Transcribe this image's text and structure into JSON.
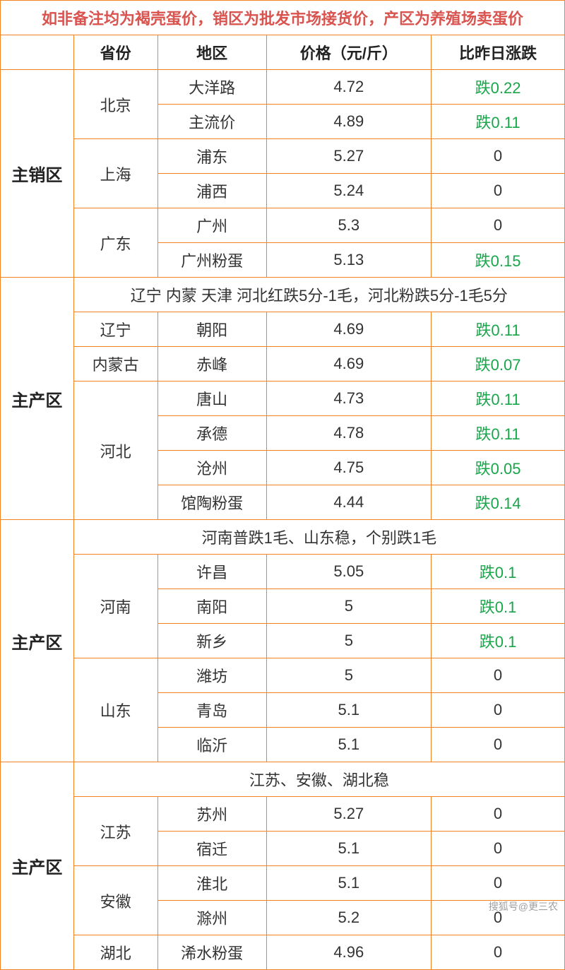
{
  "title": "如非备注均为褐壳蛋价，销区为批发市场接货价，产区为养殖场卖蛋价",
  "columns": {
    "province": "省份",
    "district": "地区",
    "price": "价格（元/斤）",
    "change": "比昨日涨跌"
  },
  "watermark": "搜狐号@更三农",
  "colors": {
    "border": "#f58220",
    "title_text": "#d9534f",
    "fall_text": "#1aa54b",
    "normal_text": "#333333"
  },
  "sections": [
    {
      "region": "主销区",
      "rows": [
        {
          "province": "北京",
          "district": "大洋路",
          "price": "4.72",
          "change": "跌0.22",
          "fall": true,
          "provRowspan": 2
        },
        {
          "province": "",
          "district": "主流价",
          "price": "4.89",
          "change": "跌0.11",
          "fall": true
        },
        {
          "province": "上海",
          "district": "浦东",
          "price": "5.27",
          "change": "0",
          "fall": false,
          "provRowspan": 2
        },
        {
          "province": "",
          "district": "浦西",
          "price": "5.24",
          "change": "0",
          "fall": false
        },
        {
          "province": "广东",
          "district": "广州",
          "price": "5.3",
          "change": "0",
          "fall": false,
          "provRowspan": 2
        },
        {
          "province": "",
          "district": "广州粉蛋",
          "price": "5.13",
          "change": "跌0.15",
          "fall": true
        }
      ]
    },
    {
      "region": "主产区",
      "note": "辽宁 内蒙 天津 河北红跌5分-1毛，河北粉跌5分-1毛5分",
      "rows": [
        {
          "province": "辽宁",
          "district": "朝阳",
          "price": "4.69",
          "change": "跌0.11",
          "fall": true,
          "provRowspan": 1
        },
        {
          "province": "内蒙古",
          "district": "赤峰",
          "price": "4.69",
          "change": "跌0.07",
          "fall": true,
          "provRowspan": 1
        },
        {
          "province": "河北",
          "district": "唐山",
          "price": "4.73",
          "change": "跌0.11",
          "fall": true,
          "provRowspan": 4
        },
        {
          "province": "",
          "district": "承德",
          "price": "4.78",
          "change": "跌0.11",
          "fall": true
        },
        {
          "province": "",
          "district": "沧州",
          "price": "4.75",
          "change": "跌0.05",
          "fall": true
        },
        {
          "province": "",
          "district": "馆陶粉蛋",
          "price": "4.44",
          "change": "跌0.14",
          "fall": true
        }
      ]
    },
    {
      "region": "主产区",
      "note": "河南普跌1毛、山东稳，个别跌1毛",
      "rows": [
        {
          "province": "河南",
          "district": "许昌",
          "price": "5.05",
          "change": "跌0.1",
          "fall": true,
          "provRowspan": 3
        },
        {
          "province": "",
          "district": "南阳",
          "price": "5",
          "change": "跌0.1",
          "fall": true
        },
        {
          "province": "",
          "district": "新乡",
          "price": "5",
          "change": "跌0.1",
          "fall": true
        },
        {
          "province": "山东",
          "district": "潍坊",
          "price": "5",
          "change": "0",
          "fall": false,
          "provRowspan": 3
        },
        {
          "province": "",
          "district": "青岛",
          "price": "5.1",
          "change": "0",
          "fall": false
        },
        {
          "province": "",
          "district": "临沂",
          "price": "5.1",
          "change": "0",
          "fall": false
        }
      ]
    },
    {
      "region": "主产区",
      "note": "江苏、安徽、湖北稳",
      "rows": [
        {
          "province": "江苏",
          "district": "苏州",
          "price": "5.27",
          "change": "0",
          "fall": false,
          "provRowspan": 2
        },
        {
          "province": "",
          "district": "宿迁",
          "price": "5.1",
          "change": "0",
          "fall": false
        },
        {
          "province": "安徽",
          "district": "淮北",
          "price": "5.1",
          "change": "0",
          "fall": false,
          "provRowspan": 2
        },
        {
          "province": "",
          "district": "滁州",
          "price": "5.2",
          "change": "0",
          "fall": false
        },
        {
          "province": "湖北",
          "district": "浠水粉蛋",
          "price": "4.96",
          "change": "0",
          "fall": false,
          "provRowspan": 1
        }
      ]
    }
  ]
}
